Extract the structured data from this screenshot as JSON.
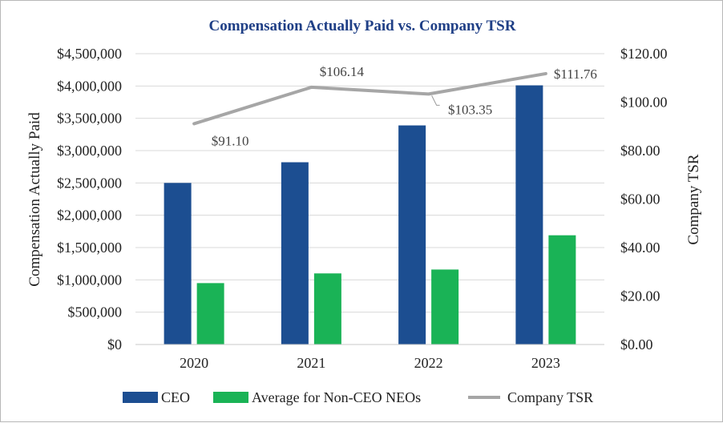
{
  "chart_data": {
    "type": "bar+line",
    "title": "Compensation Actually Paid vs. Company TSR",
    "categories": [
      "2020",
      "2021",
      "2022",
      "2023"
    ],
    "ylabel_left": "Compensation Actually Paid",
    "ylabel_right": "Company TSR",
    "ylim_left": [
      0,
      4500000
    ],
    "ylim_right": [
      0,
      120
    ],
    "left_ticks": [
      "$0",
      "$500,000",
      "$1,000,000",
      "$1,500,000",
      "$2,000,000",
      "$2,500,000",
      "$3,000,000",
      "$3,500,000",
      "$4,000,000",
      "$4,500,000"
    ],
    "right_ticks": [
      "$0.00",
      "$20.00",
      "$40.00",
      "$60.00",
      "$80.00",
      "$100.00",
      "$120.00"
    ],
    "series": [
      {
        "name": "CEO",
        "type": "bar",
        "axis": "left",
        "color": "#1c4e91",
        "values": [
          2500000,
          2820000,
          3390000,
          4010000
        ]
      },
      {
        "name": "Average for Non-CEO NEOs",
        "type": "bar",
        "axis": "left",
        "color": "#1ab356",
        "values": [
          950000,
          1100000,
          1160000,
          1690000
        ]
      },
      {
        "name": "Company TSR",
        "type": "line",
        "axis": "right",
        "color": "#a6a6a6",
        "values": [
          91.1,
          106.14,
          103.35,
          111.76
        ],
        "labels": [
          "$91.10",
          "$106.14",
          "$103.35",
          "$111.76"
        ]
      }
    ],
    "grid": true,
    "legend_position": "bottom"
  }
}
